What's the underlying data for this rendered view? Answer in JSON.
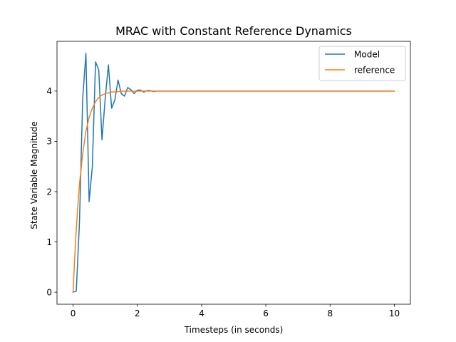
{
  "chart_data": {
    "type": "line",
    "title": "MRAC with Constant Reference Dynamics",
    "xlabel": "Timesteps (in seconds)",
    "ylabel": "State Variable Magnitude",
    "xlim": [
      -0.5,
      10.5
    ],
    "ylim": [
      -0.24,
      4.99
    ],
    "xticks": [
      0,
      2,
      4,
      6,
      8,
      10
    ],
    "yticks": [
      0,
      1,
      2,
      3,
      4
    ],
    "grid": false,
    "legend_position": "top-right",
    "series": [
      {
        "name": "Model",
        "color": "#1f77b4",
        "x": [
          0,
          0.1,
          0.2,
          0.3,
          0.4,
          0.5,
          0.6,
          0.7,
          0.8,
          0.9,
          1.0,
          1.1,
          1.2,
          1.3,
          1.4,
          1.5,
          1.6,
          1.7,
          1.8,
          1.9,
          2.0,
          2.1,
          2.2,
          2.3,
          2.4,
          2.5,
          2.6,
          2.7,
          2.8,
          3.0,
          4.0,
          5.0,
          6.0,
          7.0,
          8.0,
          9.0,
          10.0
        ],
        "y": [
          0,
          0.02,
          1.4,
          3.85,
          4.75,
          1.8,
          2.5,
          4.58,
          4.42,
          3.03,
          3.85,
          4.52,
          3.66,
          3.82,
          4.22,
          3.95,
          3.9,
          4.07,
          4.03,
          3.95,
          4.02,
          4.02,
          3.98,
          4.01,
          4.01,
          3.99,
          4.0,
          4.0,
          4.0,
          4.0,
          4.0,
          4.0,
          4.0,
          4.0,
          4.0,
          4.0,
          4.0
        ]
      },
      {
        "name": "reference",
        "color": "#ff7f0e",
        "x": [
          0,
          0.05,
          0.1,
          0.15,
          0.2,
          0.3,
          0.4,
          0.5,
          0.6,
          0.7,
          0.8,
          0.9,
          1.0,
          1.2,
          1.4,
          1.6,
          1.8,
          2.0,
          2.5,
          3.0,
          4.0,
          5.0,
          6.0,
          7.0,
          8.0,
          9.0,
          10.0
        ],
        "y": [
          0,
          0.68,
          1.25,
          1.73,
          2.15,
          2.75,
          3.2,
          3.48,
          3.66,
          3.79,
          3.87,
          3.92,
          3.95,
          3.98,
          3.99,
          4.0,
          4.0,
          4.0,
          4.0,
          4.0,
          4.0,
          4.0,
          4.0,
          4.0,
          4.0,
          4.0,
          4.0
        ]
      }
    ]
  }
}
